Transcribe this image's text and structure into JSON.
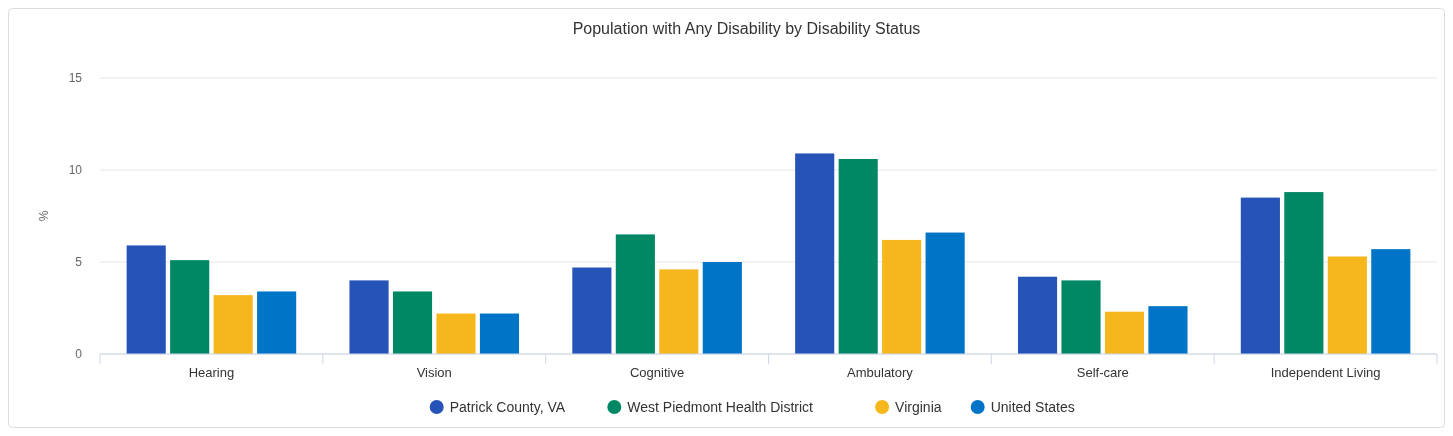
{
  "chart_data": {
    "type": "bar",
    "title": "Population with Any Disability by Disability Status",
    "ylabel": "%",
    "categories": [
      "Hearing",
      "Vision",
      "Cognitive",
      "Ambulatory",
      "Self-care",
      "Independent Living"
    ],
    "series": [
      {
        "name": "Patrick County, VA",
        "color": "#2553b8",
        "values": [
          5.9,
          4.0,
          4.7,
          10.9,
          4.2,
          8.5
        ]
      },
      {
        "name": "West Piedmont Health District",
        "color": "#008764",
        "values": [
          5.1,
          3.4,
          6.5,
          10.6,
          4.0,
          8.8
        ]
      },
      {
        "name": "Virginia",
        "color": "#f6b71d",
        "values": [
          3.2,
          2.2,
          4.6,
          6.2,
          2.3,
          5.3
        ]
      },
      {
        "name": "United States",
        "color": "#0074c6",
        "values": [
          3.4,
          2.2,
          5.0,
          6.6,
          2.6,
          5.7
        ]
      }
    ],
    "ylim": [
      0,
      15
    ],
    "yticks": [
      0,
      5,
      10,
      15
    ],
    "grid": "y",
    "legend": "bottom"
  }
}
